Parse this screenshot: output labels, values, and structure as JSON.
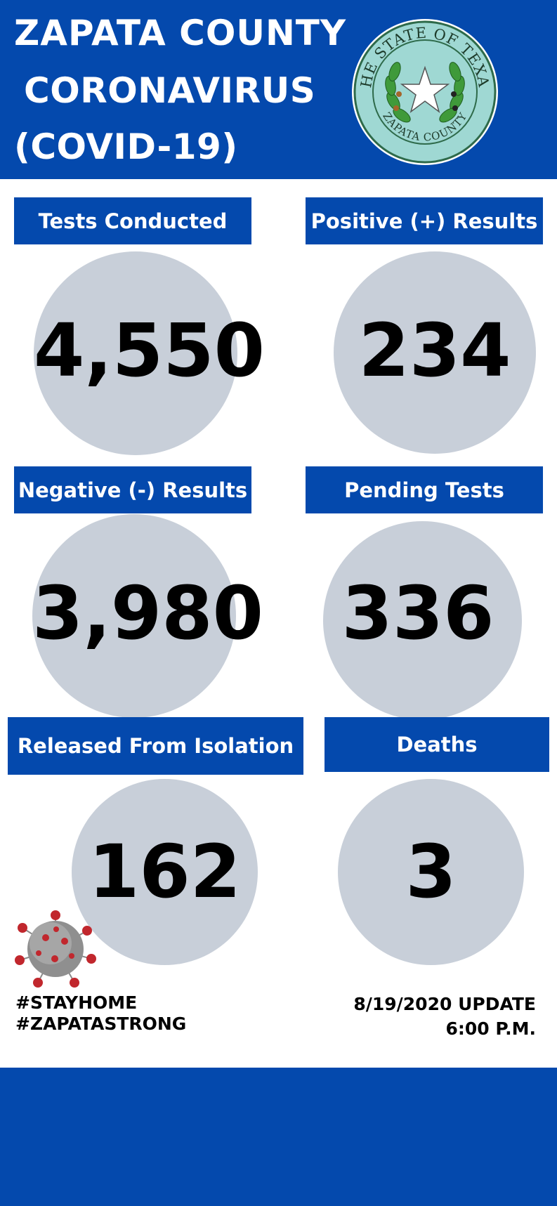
{
  "header": {
    "title_line1": "ZAPATA COUNTY",
    "title_line2": "CORONAVIRUS",
    "title_line3": "(COVID-19)",
    "seal_text_top": "THE STATE OF TEXAS",
    "seal_text_bottom": "ZAPATA COUNTY"
  },
  "stats": [
    {
      "label": "Tests Conducted",
      "value": "4,550"
    },
    {
      "label": "Positive (+) Results",
      "value": "234"
    },
    {
      "label": "Negative (-) Results",
      "value": "3,980"
    },
    {
      "label": "Pending Tests",
      "value": "336"
    },
    {
      "label": "Released From Isolation",
      "value": "162"
    },
    {
      "label": "Deaths",
      "value": "3"
    }
  ],
  "footer": {
    "hashtag1": "#STAYHOME",
    "hashtag2": "#ZAPATASTRONG",
    "update_date": "8/19/2020 UPDATE",
    "update_time": "6:00 P.M."
  },
  "colors": {
    "brand_blue": "#0449ad",
    "circle_gray": "#c8cfd9"
  }
}
